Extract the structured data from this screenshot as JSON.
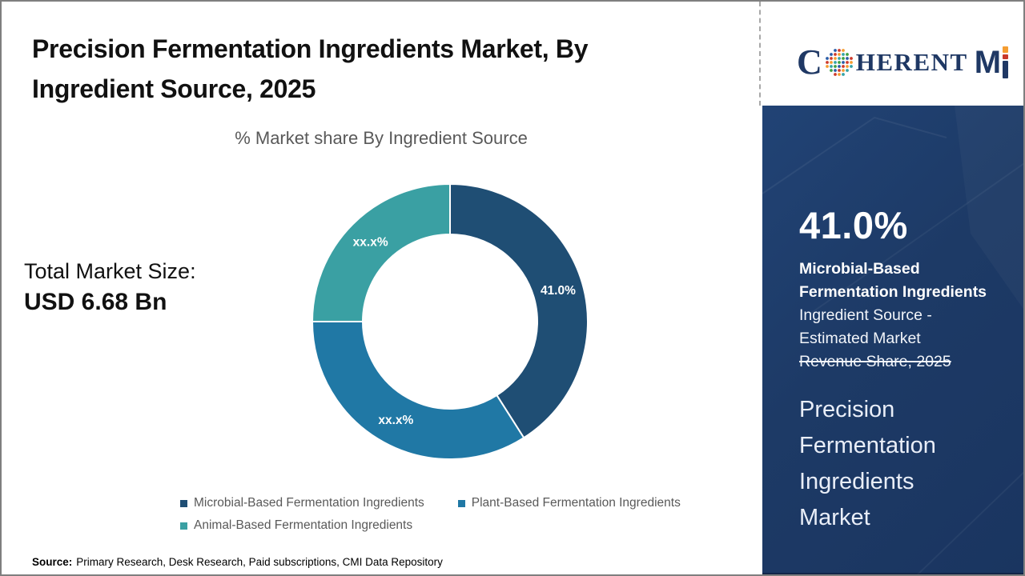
{
  "header": {
    "title_lines": [
      "Precision Fermentation Ingredients Market, By",
      "Ingredient Source, 2025"
    ]
  },
  "logo": {
    "part_c": "C",
    "part_herent": "HERENT",
    "part_m": "M"
  },
  "main": {
    "total_label": "Total Market Size:",
    "total_value": "USD 6.68 Bn"
  },
  "chart_data": {
    "type": "pie",
    "donut": true,
    "title": "% Market share By Ingredient Source",
    "start_angle_deg": 0,
    "direction": "clockwise",
    "legend_position": "bottom",
    "slices": [
      {
        "name": "Microbial-Based Fermentation Ingredients",
        "value": 41.0,
        "label": "41.0%",
        "color": "#1F4E74"
      },
      {
        "name": "Plant-Based Fermentation Ingredients",
        "value": 34.0,
        "label": "xx.x%",
        "color": "#2078A5"
      },
      {
        "name": "Animal-Based Fermentation Ingredients",
        "value": 25.0,
        "label": "xx.x%",
        "color": "#3AA0A3"
      }
    ]
  },
  "sidebar": {
    "stat_value": "41.0%",
    "desc_lines": [
      "Microbial-Based",
      "Fermentation Ingredients",
      "Ingredient Source -",
      "Estimated Market",
      "Revenue Share, 2025"
    ],
    "market_lines": [
      "Precision",
      "Fermentation",
      "Ingredients",
      "Market"
    ]
  },
  "footer": {
    "source_label": "Source:",
    "source_text": "Primary Research, Desk Research, Paid subscriptions, CMI Data Repository"
  },
  "colors": {
    "sidebar_bg": "#1D3A66",
    "title_text": "#111111",
    "muted_text": "#595959",
    "logo_navy": "#1F3864",
    "logo_orange": "#F59D31",
    "logo_red": "#C8392B",
    "slice_label_text": "#FFFFFF"
  }
}
